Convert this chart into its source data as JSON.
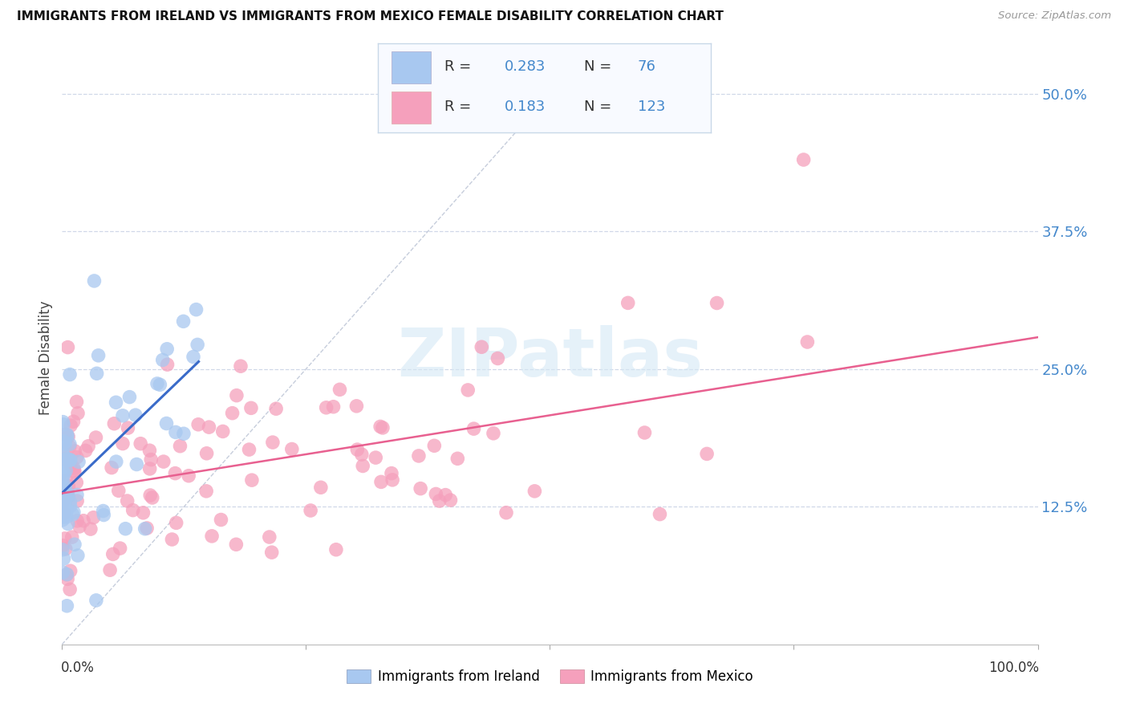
{
  "title": "IMMIGRANTS FROM IRELAND VS IMMIGRANTS FROM MEXICO FEMALE DISABILITY CORRELATION CHART",
  "source": "Source: ZipAtlas.com",
  "ylabel": "Female Disability",
  "xlim": [
    0.0,
    1.0
  ],
  "ylim": [
    0.0,
    0.52
  ],
  "ireland_R": 0.283,
  "ireland_N": 76,
  "mexico_R": 0.183,
  "mexico_N": 123,
  "ireland_color": "#a8c8f0",
  "ireland_line_color": "#3a6bc9",
  "mexico_color": "#f5a0bc",
  "mexico_line_color": "#e86090",
  "diagonal_color": "#c0c8d8",
  "watermark_color": "#d5e8f5",
  "ytick_color": "#4488cc",
  "background_color": "#ffffff",
  "legend_bg": "#f8faff",
  "legend_border": "#c8d8e8"
}
